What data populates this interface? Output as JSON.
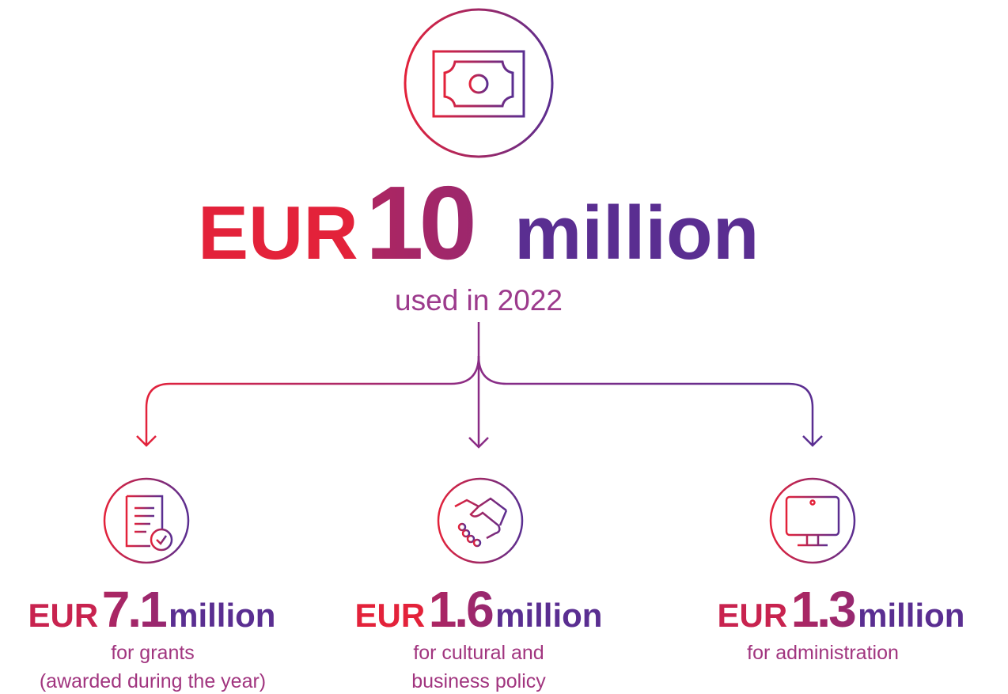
{
  "main": {
    "currency": "EUR",
    "amount": "10",
    "unit": "million",
    "caption": "used in 2022"
  },
  "items": [
    {
      "currency": "EUR",
      "amount": "7.1",
      "unit": "million",
      "caption": [
        "for grants",
        "(awarded during the year)"
      ]
    },
    {
      "currency": "EUR",
      "amount": "1.6",
      "unit": "million",
      "caption": [
        "for cultural and",
        "business policy"
      ]
    },
    {
      "currency": "EUR",
      "amount": "1.3",
      "unit": "million",
      "caption": [
        "for administration"
      ]
    }
  ]
}
